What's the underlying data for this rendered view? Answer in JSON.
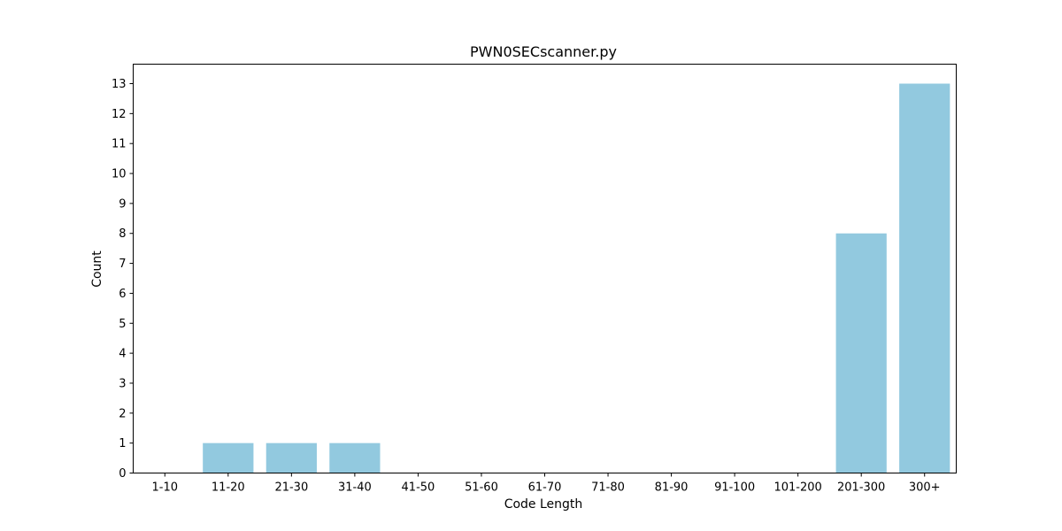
{
  "chart_data": {
    "type": "bar",
    "title": "PWN0SECscanner.py",
    "xlabel": "Code Length",
    "ylabel": "Count",
    "categories": [
      "1-10",
      "11-20",
      "21-30",
      "31-40",
      "41-50",
      "51-60",
      "61-70",
      "71-80",
      "81-90",
      "91-100",
      "101-200",
      "201-300",
      "300+"
    ],
    "values": [
      0,
      1,
      1,
      1,
      0,
      0,
      0,
      0,
      0,
      0,
      0,
      8,
      13
    ],
    "ylim": [
      0,
      13.65
    ],
    "yticks": [
      0,
      1,
      2,
      3,
      4,
      5,
      6,
      7,
      8,
      9,
      10,
      11,
      12,
      13
    ],
    "grid": false,
    "legend": "none",
    "bar_color": "#92c9df"
  }
}
